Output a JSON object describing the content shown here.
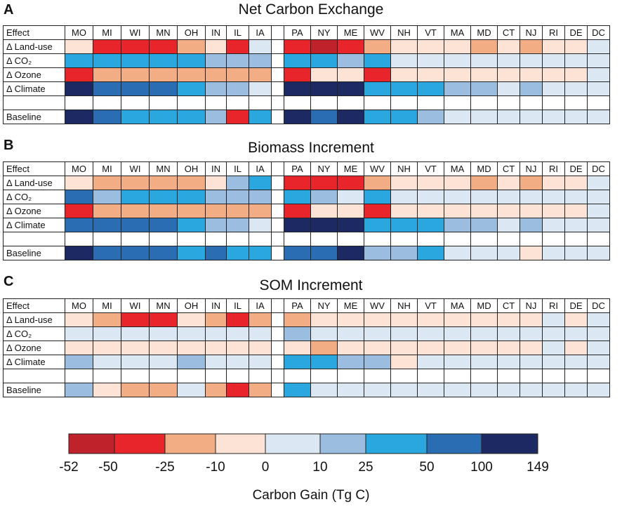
{
  "chart_data": [
    {
      "type": "heatmap",
      "panel": "A",
      "title": "Net Carbon Exchange",
      "corner_label": "Effect",
      "columns": [
        "MO",
        "MI",
        "WI",
        "MN",
        "OH",
        "IN",
        "IL",
        "IA",
        "",
        "PA",
        "NY",
        "ME",
        "WV",
        "NH",
        "VT",
        "MA",
        "MD",
        "CT",
        "NJ",
        "RI",
        "DE",
        "DC"
      ],
      "rows": [
        "Δ Land-use",
        "Δ CO₂",
        "Δ Ozone",
        "Δ Climate",
        "",
        "Baseline"
      ],
      "cells": [
        [
          3,
          1,
          1,
          1,
          2,
          3,
          1,
          4,
          null,
          1,
          0,
          1,
          2,
          3,
          3,
          3,
          2,
          3,
          2,
          3,
          3,
          4
        ],
        [
          6,
          6,
          6,
          6,
          6,
          5,
          5,
          5,
          null,
          6,
          6,
          5,
          6,
          4,
          4,
          4,
          4,
          4,
          4,
          4,
          4,
          4
        ],
        [
          1,
          2,
          2,
          2,
          2,
          2,
          2,
          2,
          null,
          1,
          3,
          3,
          1,
          3,
          3,
          3,
          3,
          3,
          3,
          3,
          3,
          4
        ],
        [
          8,
          7,
          7,
          7,
          6,
          5,
          5,
          4,
          null,
          8,
          8,
          8,
          6,
          6,
          6,
          5,
          5,
          4,
          5,
          4,
          4,
          4
        ],
        [
          null,
          null,
          null,
          null,
          null,
          null,
          null,
          null,
          null,
          null,
          null,
          null,
          null,
          null,
          null,
          null,
          null,
          null,
          null,
          null,
          null,
          null
        ],
        [
          8,
          7,
          6,
          6,
          6,
          5,
          1,
          6,
          null,
          8,
          7,
          8,
          6,
          6,
          5,
          4,
          4,
          4,
          4,
          4,
          4,
          4
        ]
      ]
    },
    {
      "type": "heatmap",
      "panel": "B",
      "title": "Biomass Increment",
      "corner_label": "Effect",
      "columns": [
        "MO",
        "MI",
        "WI",
        "MN",
        "OH",
        "IN",
        "IL",
        "IA",
        "",
        "PA",
        "NY",
        "ME",
        "WV",
        "NH",
        "VT",
        "MA",
        "MD",
        "CT",
        "NJ",
        "RI",
        "DE",
        "DC"
      ],
      "rows": [
        "Δ Land-use",
        "Δ CO₂",
        "Δ Ozone",
        "Δ Climate",
        "",
        "Baseline"
      ],
      "cells": [
        [
          3,
          2,
          2,
          2,
          2,
          3,
          5,
          6,
          null,
          1,
          1,
          1,
          2,
          3,
          3,
          3,
          2,
          3,
          2,
          3,
          3,
          4
        ],
        [
          7,
          5,
          6,
          6,
          6,
          5,
          5,
          5,
          null,
          6,
          5,
          4,
          6,
          4,
          4,
          4,
          4,
          4,
          4,
          4,
          4,
          4
        ],
        [
          1,
          2,
          2,
          2,
          2,
          2,
          2,
          2,
          null,
          1,
          3,
          3,
          1,
          3,
          3,
          3,
          3,
          3,
          3,
          3,
          3,
          4
        ],
        [
          7,
          7,
          7,
          7,
          6,
          5,
          5,
          4,
          null,
          8,
          8,
          8,
          6,
          6,
          6,
          5,
          5,
          4,
          5,
          4,
          4,
          4
        ],
        [
          null,
          null,
          null,
          null,
          null,
          null,
          null,
          null,
          null,
          null,
          null,
          null,
          null,
          null,
          null,
          null,
          null,
          null,
          null,
          null,
          null,
          null
        ],
        [
          8,
          7,
          7,
          7,
          6,
          7,
          6,
          6,
          null,
          7,
          7,
          8,
          5,
          5,
          6,
          4,
          4,
          4,
          3,
          4,
          4,
          4
        ]
      ]
    },
    {
      "type": "heatmap",
      "panel": "C",
      "title": "SOM Increment",
      "corner_label": "Effect",
      "columns": [
        "MO",
        "MI",
        "WI",
        "MN",
        "OH",
        "IN",
        "IL",
        "IA",
        "",
        "PA",
        "NY",
        "ME",
        "WV",
        "NH",
        "VT",
        "MA",
        "MD",
        "CT",
        "NJ",
        "RI",
        "DE",
        "DC"
      ],
      "rows": [
        "Δ Land-use",
        "Δ CO₂",
        "Δ Ozone",
        "Δ Climate",
        "",
        "Baseline"
      ],
      "cells": [
        [
          3,
          2,
          1,
          1,
          3,
          2,
          1,
          2,
          null,
          2,
          3,
          3,
          3,
          3,
          3,
          3,
          3,
          3,
          3,
          4,
          3,
          4
        ],
        [
          4,
          4,
          4,
          4,
          4,
          4,
          4,
          4,
          null,
          5,
          4,
          4,
          4,
          4,
          4,
          4,
          4,
          4,
          4,
          4,
          4,
          4
        ],
        [
          3,
          3,
          3,
          3,
          3,
          3,
          3,
          3,
          null,
          3,
          2,
          3,
          3,
          3,
          3,
          3,
          3,
          3,
          3,
          4,
          3,
          4
        ],
        [
          5,
          4,
          4,
          4,
          5,
          4,
          4,
          4,
          null,
          6,
          6,
          5,
          5,
          3,
          4,
          4,
          4,
          4,
          4,
          4,
          4,
          4
        ],
        [
          null,
          null,
          null,
          null,
          null,
          null,
          null,
          null,
          null,
          null,
          null,
          null,
          null,
          null,
          null,
          null,
          null,
          null,
          null,
          null,
          null,
          null
        ],
        [
          5,
          3,
          2,
          2,
          4,
          2,
          1,
          2,
          null,
          6,
          4,
          4,
          4,
          4,
          4,
          4,
          4,
          4,
          4,
          4,
          4,
          4
        ]
      ]
    }
  ],
  "color_scale": {
    "colors": [
      "#c0222b",
      "#e8252a",
      "#f3ad84",
      "#fde3d5",
      "#dbe8f4",
      "#9bbde0",
      "#2aa7df",
      "#2a6db3",
      "#1c2962"
    ],
    "empty_color": "#ffffff",
    "tick_labels": [
      "-52",
      "-50",
      "-25",
      "-10",
      "0",
      "10",
      "25",
      "50",
      "100",
      "149"
    ],
    "axis_label": "Carbon Gain (Tg C)"
  }
}
